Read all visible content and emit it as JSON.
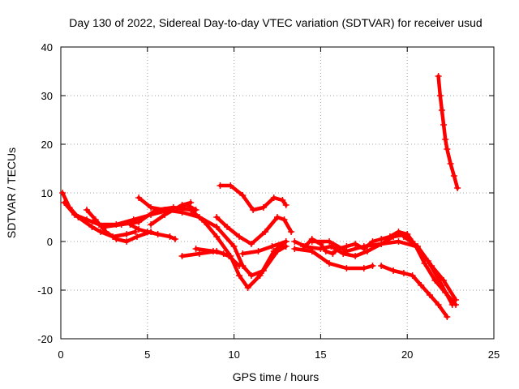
{
  "chart_data": {
    "type": "scatter",
    "title": "Day 130 of 2022, Sidereal Day-to-day VTEC variation (SDTVAR) for receiver usud",
    "xlabel": "GPS time / hours",
    "ylabel": "SDTVAR / TECUs",
    "xlim": [
      0,
      25
    ],
    "ylim": [
      -20,
      40
    ],
    "xticks": [
      "0",
      "5",
      "10",
      "15",
      "20",
      "25"
    ],
    "yticks": [
      "-20",
      "-10",
      "0",
      "10",
      "20",
      "30",
      "40"
    ],
    "grid": true,
    "marker": "+",
    "color": "#ff0000",
    "series": [
      {
        "name": "track-1",
        "points": [
          [
            0.1,
            10
          ],
          [
            0.5,
            7
          ],
          [
            1,
            5
          ],
          [
            1.8,
            3
          ],
          [
            2.3,
            2
          ],
          [
            3,
            1
          ],
          [
            3.8,
            1.5
          ],
          [
            4.3,
            2
          ]
        ]
      },
      {
        "name": "track-2",
        "points": [
          [
            0.2,
            8
          ],
          [
            0.8,
            5.5
          ],
          [
            1.5,
            4.5
          ],
          [
            2.2,
            3.5
          ],
          [
            3.2,
            3.5
          ],
          [
            4.2,
            4.5
          ],
          [
            5.2,
            5.5
          ],
          [
            6.3,
            6.5
          ],
          [
            7.3,
            7.5
          ],
          [
            7.8,
            6.5
          ]
        ]
      },
      {
        "name": "track-3",
        "points": [
          [
            1.5,
            6.5
          ],
          [
            2,
            4.5
          ],
          [
            2.6,
            2
          ],
          [
            3.2,
            0.5
          ],
          [
            3.8,
            0
          ],
          [
            4.4,
            1
          ],
          [
            5.2,
            2
          ]
        ]
      },
      {
        "name": "track-4",
        "points": [
          [
            4.5,
            9
          ],
          [
            5.2,
            7
          ],
          [
            6,
            6.5
          ],
          [
            7,
            6
          ],
          [
            8,
            5
          ],
          [
            9,
            3
          ],
          [
            10,
            -1
          ],
          [
            10.5,
            -5
          ],
          [
            11,
            -7
          ],
          [
            11.7,
            -6
          ],
          [
            12.5,
            -2
          ],
          [
            13,
            -1
          ]
        ]
      },
      {
        "name": "track-5",
        "points": [
          [
            2.5,
            3
          ],
          [
            3.5,
            3.5
          ],
          [
            4.5,
            4
          ],
          [
            5.5,
            6.5
          ],
          [
            6.5,
            7
          ],
          [
            7.5,
            6.5
          ],
          [
            8.3,
            4
          ],
          [
            9,
            1
          ],
          [
            9.8,
            -3
          ],
          [
            10.3,
            -7
          ],
          [
            10.8,
            -9.5
          ],
          [
            11.5,
            -7
          ],
          [
            12.3,
            -2
          ],
          [
            13,
            0
          ]
        ]
      },
      {
        "name": "track-6",
        "points": [
          [
            4,
            3.5
          ],
          [
            4.5,
            2.5
          ],
          [
            5,
            2
          ],
          [
            5.6,
            1.5
          ],
          [
            6.3,
            1
          ],
          [
            6.6,
            0.5
          ]
        ]
      },
      {
        "name": "track-7",
        "points": [
          [
            5.2,
            3.5
          ],
          [
            6,
            5.5
          ],
          [
            7,
            7.5
          ],
          [
            7.5,
            8
          ]
        ]
      },
      {
        "name": "track-8",
        "points": [
          [
            7,
            -3
          ],
          [
            8,
            -2.5
          ],
          [
            9,
            -2
          ],
          [
            9.7,
            -3
          ],
          [
            10.3,
            -5
          ]
        ]
      },
      {
        "name": "track-9",
        "points": [
          [
            7.8,
            -1.5
          ],
          [
            8.8,
            -2
          ],
          [
            9.4,
            -2.5
          ]
        ]
      },
      {
        "name": "track-10",
        "points": [
          [
            9,
            5
          ],
          [
            9.6,
            3
          ],
          [
            10.3,
            1
          ],
          [
            11,
            -0.5
          ],
          [
            11.8,
            2
          ],
          [
            12.5,
            5
          ],
          [
            12.9,
            4.5
          ],
          [
            13.3,
            2
          ]
        ]
      },
      {
        "name": "track-11",
        "points": [
          [
            9.2,
            11.5
          ],
          [
            9.8,
            11.5
          ],
          [
            10.5,
            9.5
          ],
          [
            11.1,
            6.5
          ],
          [
            11.7,
            7
          ],
          [
            12.3,
            9
          ],
          [
            12.8,
            8.5
          ],
          [
            13,
            7.5
          ]
        ]
      },
      {
        "name": "track-12",
        "points": [
          [
            10.5,
            -2.5
          ],
          [
            11.4,
            -2
          ],
          [
            12.2,
            -1
          ],
          [
            13,
            0
          ]
        ]
      },
      {
        "name": "track-13",
        "points": [
          [
            13.5,
            0
          ],
          [
            14.1,
            -1
          ],
          [
            14.5,
            0.5
          ],
          [
            15,
            -0.5
          ],
          [
            15.3,
            -2
          ],
          [
            15.7,
            -2.5
          ],
          [
            16,
            -1.5
          ],
          [
            16.5,
            -1
          ],
          [
            17,
            -0.5
          ],
          [
            17.5,
            -1.5
          ],
          [
            18,
            0
          ],
          [
            18.5,
            0.5
          ],
          [
            19,
            1
          ],
          [
            19.5,
            2
          ],
          [
            20,
            1.5
          ],
          [
            20.5,
            -1
          ],
          [
            21,
            -4.5
          ],
          [
            21.6,
            -8
          ],
          [
            22.2,
            -10.5
          ],
          [
            22.8,
            -13
          ]
        ]
      },
      {
        "name": "track-14",
        "points": [
          [
            13.5,
            -1.5
          ],
          [
            14.5,
            -2
          ],
          [
            15.5,
            -4.5
          ],
          [
            16.5,
            -5.5
          ],
          [
            17.5,
            -5.5
          ],
          [
            18,
            -5
          ]
        ]
      },
      {
        "name": "track-15",
        "points": [
          [
            14,
            -1
          ],
          [
            15,
            -1.5
          ],
          [
            15.6,
            -1
          ],
          [
            16.3,
            -2.5
          ],
          [
            17,
            -3
          ],
          [
            17.7,
            -2
          ],
          [
            18.5,
            -0.5
          ],
          [
            19.2,
            1
          ],
          [
            20,
            1.5
          ],
          [
            20.3,
            0
          ]
        ]
      },
      {
        "name": "track-16",
        "points": [
          [
            14.5,
            0
          ],
          [
            15.5,
            0
          ],
          [
            16.5,
            -2
          ],
          [
            17.5,
            -1
          ],
          [
            18.5,
            -0.5
          ],
          [
            19.5,
            0
          ],
          [
            20.5,
            -1
          ],
          [
            21.2,
            -4
          ],
          [
            22,
            -9
          ],
          [
            22.6,
            -13
          ]
        ]
      },
      {
        "name": "track-17",
        "points": [
          [
            19.8,
            1
          ],
          [
            20.6,
            -1
          ],
          [
            21.4,
            -5
          ],
          [
            22.1,
            -8
          ],
          [
            22.8,
            -12
          ]
        ]
      },
      {
        "name": "track-18",
        "points": [
          [
            18.5,
            -5
          ],
          [
            19.2,
            -6
          ],
          [
            19.8,
            -6.5
          ],
          [
            20.3,
            -7
          ],
          [
            20.8,
            -9
          ],
          [
            21.3,
            -11
          ],
          [
            21.8,
            -13
          ],
          [
            22.3,
            -15.5
          ]
        ]
      },
      {
        "name": "track-19",
        "points": [
          [
            21.8,
            34
          ],
          [
            21.9,
            30
          ],
          [
            22,
            27
          ],
          [
            22.1,
            24
          ],
          [
            22.2,
            21
          ],
          [
            22.3,
            19
          ],
          [
            22.5,
            16
          ],
          [
            22.7,
            13.5
          ],
          [
            22.9,
            11
          ]
        ]
      }
    ]
  }
}
